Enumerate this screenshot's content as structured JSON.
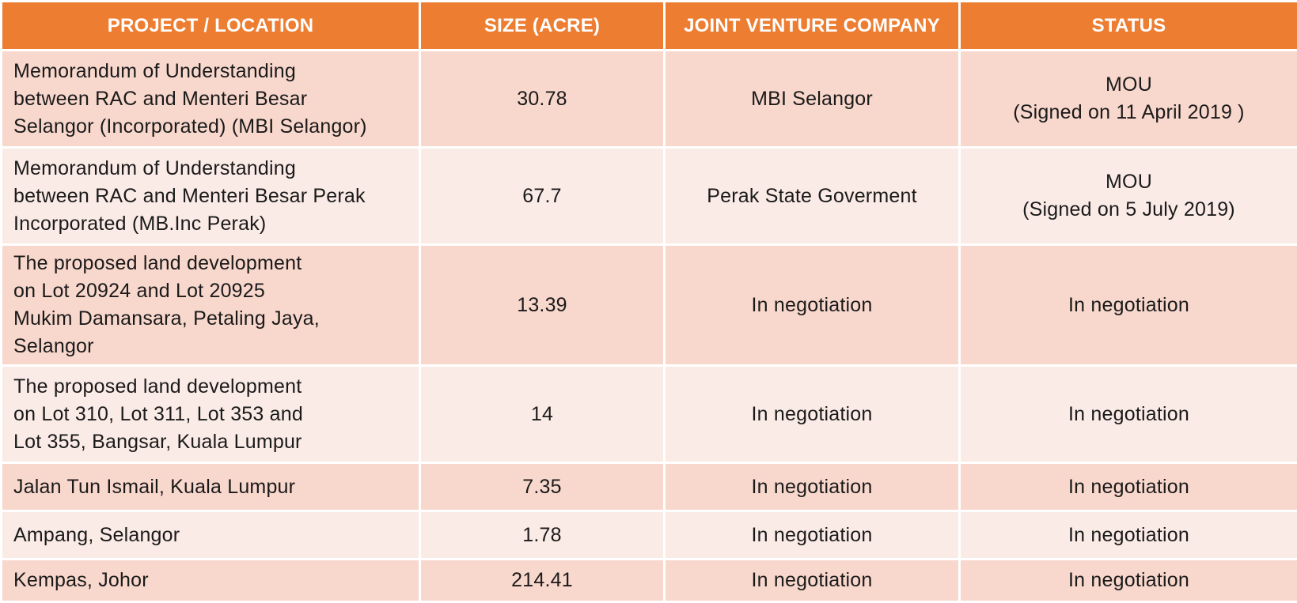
{
  "headers": {
    "project": "PROJECT / LOCATION",
    "size": "SIZE (ACRE)",
    "jv": "JOINT VENTURE COMPANY",
    "status": "STATUS"
  },
  "rows": [
    {
      "project": [
        "Memorandum of Understanding",
        "between RAC and Menteri Besar",
        "Selangor (Incorporated) (MBI Selangor)"
      ],
      "size": "30.78",
      "jv": "MBI Selangor",
      "status": [
        "MOU",
        "(Signed on 11 April 2019 )"
      ]
    },
    {
      "project": [
        "Memorandum of Understanding",
        "between RAC and Menteri Besar Perak",
        "Incorporated (MB.Inc Perak)"
      ],
      "size": "67.7",
      "jv": "Perak State Goverment",
      "status": [
        "MOU",
        "(Signed on 5 July 2019)"
      ]
    },
    {
      "project": [
        "The proposed land development",
        "on Lot 20924 and Lot 20925",
        "Mukim Damansara, Petaling Jaya,",
        "Selangor"
      ],
      "size": "13.39",
      "jv": "In negotiation",
      "status": [
        "In negotiation"
      ]
    },
    {
      "project": [
        "The proposed land development",
        "on Lot 310, Lot 311, Lot 353 and",
        "Lot 355, Bangsar, Kuala Lumpur"
      ],
      "size": "14",
      "jv": "In negotiation",
      "status": [
        "In negotiation"
      ]
    },
    {
      "project": [
        "Jalan Tun Ismail, Kuala Lumpur"
      ],
      "size": "7.35",
      "jv": "In negotiation",
      "status": [
        "In negotiation"
      ]
    },
    {
      "project": [
        "Ampang, Selangor"
      ],
      "size": "1.78",
      "jv": "In negotiation",
      "status": [
        "In negotiation"
      ]
    },
    {
      "project": [
        "Kempas, Johor"
      ],
      "size": "214.41",
      "jv": "In negotiation",
      "status": [
        "In negotiation"
      ]
    }
  ],
  "colors": {
    "header": "#ed7d31",
    "row_dark": "#f8d7cc",
    "row_light": "#fbebe6"
  }
}
